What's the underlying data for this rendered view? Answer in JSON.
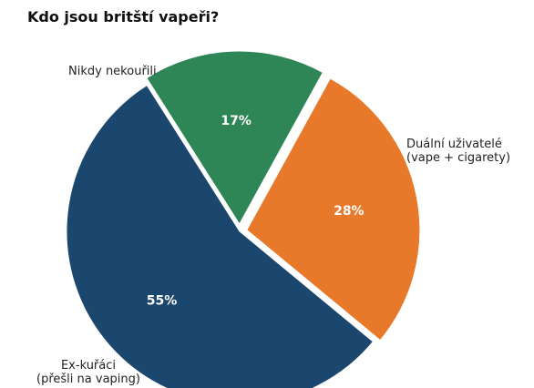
{
  "chart_data": {
    "type": "pie",
    "title": "Kdo jsou britští vapeři?",
    "slices": [
      {
        "label_lines": [
          "Duální uživatelé",
          "(vape + cigarety)"
        ],
        "value": 28,
        "display": "28%",
        "color": "#E8792B",
        "exploded": true
      },
      {
        "label_lines": [
          "Ex-kuřáci",
          "(přešli na vaping)"
        ],
        "value": 55,
        "display": "55%",
        "color": "#1B476E",
        "exploded": false
      },
      {
        "label_lines": [
          "Nikdy nekouřili"
        ],
        "value": 17,
        "display": "17%",
        "color": "#2E8555",
        "exploded": true
      }
    ],
    "start_angle_deg": -61.2,
    "direction": "clockwise",
    "legend": "none"
  }
}
